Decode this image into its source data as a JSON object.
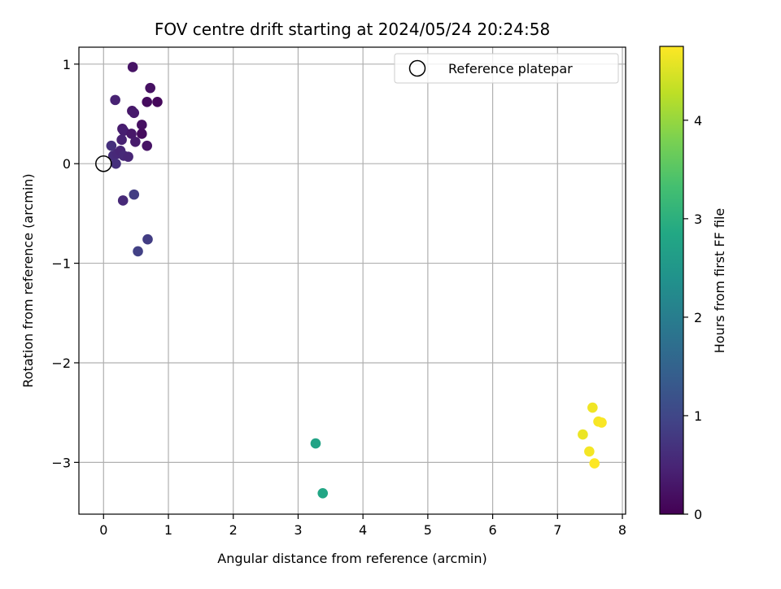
{
  "chart_data": {
    "type": "scatter",
    "title": "FOV centre drift starting at 2024/05/24 20:24:58",
    "xlabel": "Angular distance from reference (arcmin)",
    "ylabel": "Rotation from reference (arcmin)",
    "xlim": [
      -0.38,
      8.05
    ],
    "ylim": [
      -3.52,
      1.17
    ],
    "xticks": [
      0,
      1,
      2,
      3,
      4,
      5,
      6,
      7,
      8
    ],
    "xtick_labels": [
      "0",
      "1",
      "2",
      "3",
      "4",
      "5",
      "6",
      "7",
      "8"
    ],
    "yticks": [
      1,
      0,
      -1,
      -2,
      -3
    ],
    "ytick_labels": [
      "1",
      "0",
      "−1",
      "−2",
      "−3"
    ],
    "grid": true,
    "legend": {
      "placement": "top-right",
      "entries": [
        {
          "label": "Reference platepar",
          "marker": "open-circle"
        }
      ]
    },
    "reference_point": {
      "x": 0,
      "y": 0
    },
    "colorbar": {
      "label": "Hours from first FF file",
      "min": 0,
      "max": 4.75,
      "ticks": [
        0,
        1,
        2,
        3,
        4
      ],
      "tick_labels": [
        "0",
        "1",
        "2",
        "3",
        "4"
      ],
      "colormap": "viridis"
    },
    "points": [
      {
        "x": 0.45,
        "y": 0.97,
        "hours": 0.25
      },
      {
        "x": 0.72,
        "y": 0.76,
        "hours": 0.2
      },
      {
        "x": 0.18,
        "y": 0.64,
        "hours": 0.45
      },
      {
        "x": 0.67,
        "y": 0.62,
        "hours": 0.15
      },
      {
        "x": 0.83,
        "y": 0.62,
        "hours": 0.1
      },
      {
        "x": 0.44,
        "y": 0.53,
        "hours": 0.3
      },
      {
        "x": 0.47,
        "y": 0.51,
        "hours": 0.35
      },
      {
        "x": 0.59,
        "y": 0.39,
        "hours": 0.2
      },
      {
        "x": 0.29,
        "y": 0.35,
        "hours": 0.35
      },
      {
        "x": 0.31,
        "y": 0.33,
        "hours": 0.4
      },
      {
        "x": 0.43,
        "y": 0.3,
        "hours": 0.3
      },
      {
        "x": 0.59,
        "y": 0.3,
        "hours": 0.15
      },
      {
        "x": 0.28,
        "y": 0.24,
        "hours": 0.45
      },
      {
        "x": 0.49,
        "y": 0.22,
        "hours": 0.35
      },
      {
        "x": 0.67,
        "y": 0.18,
        "hours": 0.25
      },
      {
        "x": 0.12,
        "y": 0.18,
        "hours": 0.65
      },
      {
        "x": 0.15,
        "y": 0.08,
        "hours": 0.6
      },
      {
        "x": 0.21,
        "y": 0.1,
        "hours": 0.55
      },
      {
        "x": 0.26,
        "y": 0.13,
        "hours": 0.5
      },
      {
        "x": 0.31,
        "y": 0.08,
        "hours": 0.55
      },
      {
        "x": 0.38,
        "y": 0.07,
        "hours": 0.5
      },
      {
        "x": 0.19,
        "y": 0.0,
        "hours": 0.65
      },
      {
        "x": 0.47,
        "y": -0.31,
        "hours": 0.85
      },
      {
        "x": 0.3,
        "y": -0.37,
        "hours": 0.55
      },
      {
        "x": 0.68,
        "y": -0.76,
        "hours": 0.85
      },
      {
        "x": 0.53,
        "y": -0.88,
        "hours": 0.9
      },
      {
        "x": 3.27,
        "y": -2.81,
        "hours": 2.75
      },
      {
        "x": 3.38,
        "y": -3.31,
        "hours": 2.8
      },
      {
        "x": 7.54,
        "y": -2.45,
        "hours": 4.65
      },
      {
        "x": 7.63,
        "y": -2.59,
        "hours": 4.7
      },
      {
        "x": 7.68,
        "y": -2.6,
        "hours": 4.72
      },
      {
        "x": 7.39,
        "y": -2.72,
        "hours": 4.62
      },
      {
        "x": 7.49,
        "y": -2.89,
        "hours": 4.68
      },
      {
        "x": 7.57,
        "y": -3.01,
        "hours": 4.75
      }
    ]
  }
}
